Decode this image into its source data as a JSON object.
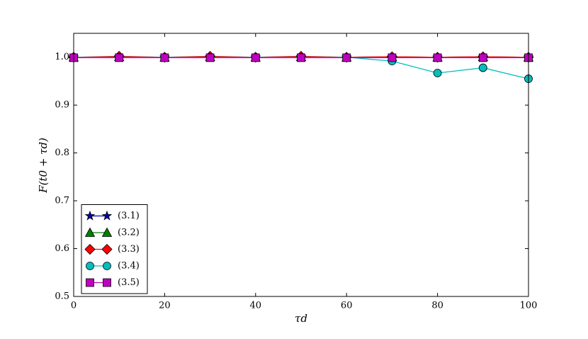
{
  "chart_data": {
    "type": "line",
    "xlabel": "τd",
    "ylabel": "F(t0 + τd)",
    "x": [
      0,
      10,
      20,
      30,
      40,
      50,
      60,
      70,
      80,
      90,
      100
    ],
    "series": [
      {
        "name": "(3.1)",
        "color": "#0000bf",
        "marker": "star",
        "values": [
          1.0,
          1.0,
          1.0,
          1.0,
          1.0,
          1.0,
          1.0,
          1.0,
          1.0,
          1.0,
          1.0
        ]
      },
      {
        "name": "(3.2)",
        "color": "#008000",
        "marker": "triangle",
        "values": [
          1.0,
          1.001,
          1.0,
          1.001,
          1.0,
          1.001,
          1.0,
          1.001,
          1.0,
          1.001,
          1.0
        ]
      },
      {
        "name": "(3.3)",
        "color": "#ff0000",
        "marker": "diamond",
        "values": [
          1.0,
          1.002,
          1.0,
          1.002,
          1.0,
          1.002,
          1.0,
          1.001,
          1.0,
          1.001,
          1.0
        ]
      },
      {
        "name": "(3.4)",
        "color": "#00bfbf",
        "marker": "circle",
        "values": [
          1.0,
          1.0,
          1.0,
          1.0,
          1.0,
          1.0,
          1.0,
          0.992,
          0.967,
          0.978,
          0.955
        ]
      },
      {
        "name": "(3.5)",
        "color": "#bf00bf",
        "marker": "square",
        "values": [
          0.999,
          0.999,
          0.999,
          0.999,
          0.999,
          0.999,
          0.999,
          0.999,
          0.999,
          0.999,
          0.999
        ]
      }
    ],
    "xlim": [
      0,
      100
    ],
    "xticks": [
      0,
      20,
      40,
      60,
      80,
      100
    ],
    "ylim": [
      0.5,
      1.05
    ],
    "yticks": [
      0.5,
      0.6,
      0.7,
      0.8,
      0.9,
      {
        "value": 1,
        "label": "1.0"
      }
    ],
    "grid": false,
    "legend": "lower left"
  }
}
